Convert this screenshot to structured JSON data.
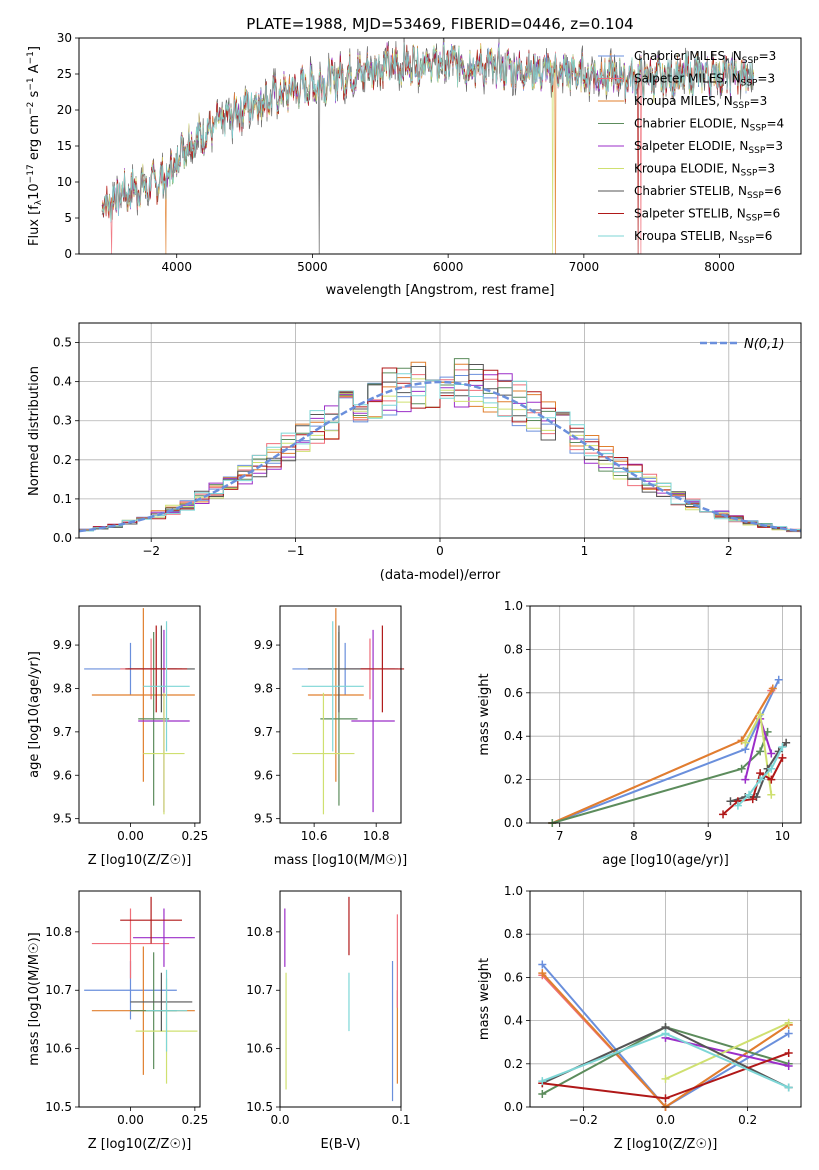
{
  "title": "PLATE=1988, MJD=53469, FIBERID=0446, z=0.104",
  "colors": {
    "chabrier_miles": "#6a8fdc",
    "salpeter_miles": "#ef6f7a",
    "kroupa_miles": "#e07f2e",
    "chabrier_elodie": "#5c8c5c",
    "salpeter_elodie": "#9b2ec8",
    "kroupa_elodie": "#cfe070",
    "chabrier_stelib": "#555555",
    "salpeter_stelib": "#b01818",
    "kroupa_stelib": "#7dd6d6",
    "normal": "#6a8fdc",
    "grid": "#b0b0b0"
  },
  "chart_data": [
    {
      "type": "line",
      "id": "spectrum",
      "xlabel": "wavelength [Angstrom, rest frame]",
      "ylabel_main": "Flux [f",
      "ylabel_sub": "λ",
      "ylabel_rest": "10",
      "ylabel_exp": "−17",
      "ylabel_units": " erg cm",
      "xlim": [
        3280,
        8600
      ],
      "ylim": [
        0,
        30
      ],
      "xticks": [
        "4000",
        "5000",
        "6000",
        "7000",
        "8000"
      ],
      "yticks": [
        "0",
        "5",
        "10",
        "15",
        "20",
        "25",
        "30"
      ],
      "grid": false,
      "legend_position": "right",
      "series": [
        {
          "name": "Chabrier MILES",
          "nssp": "3",
          "color_key": "chabrier_miles"
        },
        {
          "name": "Salpeter MILES",
          "nssp": "3",
          "color_key": "salpeter_miles"
        },
        {
          "name": "Kroupa MILES",
          "nssp": "3",
          "color_key": "kroupa_miles"
        },
        {
          "name": "Chabrier ELODIE",
          "nssp": "4",
          "color_key": "chabrier_elodie"
        },
        {
          "name": "Salpeter ELODIE",
          "nssp": "3",
          "color_key": "salpeter_elodie"
        },
        {
          "name": "Kroupa ELODIE",
          "nssp": "3",
          "color_key": "kroupa_elodie"
        },
        {
          "name": "Chabrier STELIB",
          "nssp": "6",
          "color_key": "chabrier_stelib"
        },
        {
          "name": "Salpeter STELIB",
          "nssp": "6",
          "color_key": "salpeter_stelib"
        },
        {
          "name": "Kroupa STELIB",
          "nssp": "6",
          "color_key": "kroupa_stelib"
        }
      ],
      "continuum": [
        [
          3450,
          6.5
        ],
        [
          3600,
          8.5
        ],
        [
          3800,
          9.5
        ],
        [
          3950,
          11
        ],
        [
          4050,
          15
        ],
        [
          4300,
          18
        ],
        [
          4500,
          20.5
        ],
        [
          4800,
          22.5
        ],
        [
          5000,
          23.5
        ],
        [
          5200,
          24.5
        ],
        [
          5500,
          26
        ],
        [
          5800,
          26.5
        ],
        [
          6000,
          26.5
        ],
        [
          6300,
          26
        ],
        [
          6600,
          25.5
        ],
        [
          7000,
          25
        ],
        [
          7300,
          24.5
        ],
        [
          7600,
          24.5
        ],
        [
          7800,
          25
        ],
        [
          8000,
          25
        ],
        [
          8250,
          24.5
        ]
      ]
    },
    {
      "type": "histogram",
      "id": "residuals",
      "xlabel": "(data-model)/error",
      "ylabel": "Normed distribution",
      "xlim": [
        -2.5,
        2.5
      ],
      "ylim": [
        0,
        0.55
      ],
      "xticks": [
        "−2",
        "−1",
        "0",
        "1",
        "2"
      ],
      "yticks": [
        "0.0",
        "0.1",
        "0.2",
        "0.3",
        "0.4",
        "0.5"
      ],
      "grid": true,
      "legend_label": "N(0,1)",
      "legend_position": "top-right",
      "bin_width": 0.1,
      "normal": {
        "mean": 0,
        "sigma": 1
      }
    },
    {
      "type": "errorbar",
      "id": "age_vs_z",
      "xlabel": "Z [log10(Z/Z☉)]",
      "ylabel": "age [log10(age/yr)]",
      "xlim": [
        -0.2,
        0.27
      ],
      "ylim": [
        9.49,
        9.99
      ],
      "xticks": [
        "0.00",
        "0.25"
      ],
      "xtick_values": [
        0,
        0.25
      ],
      "yticks": [
        "9.5",
        "9.6",
        "9.7",
        "9.8",
        "9.9"
      ],
      "ytick_values": [
        9.5,
        9.6,
        9.7,
        9.8,
        9.9
      ],
      "points": [
        {
          "color_key": "chabrier_miles",
          "x": 0.0,
          "xerr": 0.18,
          "y": 9.845,
          "yerr": 0.06
        },
        {
          "color_key": "salpeter_miles",
          "x": 0.08,
          "xerr": 0.12,
          "y": 9.845,
          "yerr": 0.07
        },
        {
          "color_key": "kroupa_miles",
          "x": 0.05,
          "xerr": 0.2,
          "y": 9.785,
          "yerr": 0.2
        },
        {
          "color_key": "chabrier_elodie",
          "x": 0.09,
          "xerr": 0.06,
          "y": 9.73,
          "yerr": 0.2
        },
        {
          "color_key": "salpeter_elodie",
          "x": 0.13,
          "xerr": 0.1,
          "y": 9.725,
          "yerr": 0.21
        },
        {
          "color_key": "kroupa_elodie",
          "x": 0.13,
          "xerr": 0.08,
          "y": 9.65,
          "yerr": 0.14
        },
        {
          "color_key": "chabrier_stelib",
          "x": 0.12,
          "xerr": 0.13,
          "y": 9.845,
          "yerr": 0.1
        },
        {
          "color_key": "salpeter_stelib",
          "x": 0.1,
          "xerr": 0.12,
          "y": 9.845,
          "yerr": 0.1
        },
        {
          "color_key": "kroupa_stelib",
          "x": 0.14,
          "xerr": 0.09,
          "y": 9.805,
          "yerr": 0.15
        }
      ]
    },
    {
      "type": "errorbar",
      "id": "age_vs_mass",
      "xlabel": "mass [log10(M/M☉)]",
      "ylabel": "",
      "xlim": [
        10.49,
        10.88
      ],
      "ylim": [
        9.49,
        9.99
      ],
      "xticks": [
        "10.6",
        "10.8"
      ],
      "xtick_values": [
        10.6,
        10.8
      ],
      "yticks": [
        "9.5",
        "9.6",
        "9.7",
        "9.8",
        "9.9"
      ],
      "ytick_values": [
        9.5,
        9.6,
        9.7,
        9.8,
        9.9
      ],
      "points": [
        {
          "color_key": "chabrier_miles",
          "x": 10.7,
          "xerr": 0.17,
          "y": 9.845,
          "yerr": 0.06
        },
        {
          "color_key": "salpeter_miles",
          "x": 10.78,
          "xerr": 0.08,
          "y": 9.845,
          "yerr": 0.07
        },
        {
          "color_key": "kroupa_miles",
          "x": 10.67,
          "xerr": 0.09,
          "y": 9.785,
          "yerr": 0.2
        },
        {
          "color_key": "chabrier_elodie",
          "x": 10.68,
          "xerr": 0.06,
          "y": 9.73,
          "yerr": 0.2
        },
        {
          "color_key": "salpeter_elodie",
          "x": 10.79,
          "xerr": 0.07,
          "y": 9.725,
          "yerr": 0.21
        },
        {
          "color_key": "kroupa_elodie",
          "x": 10.63,
          "xerr": 0.1,
          "y": 9.65,
          "yerr": 0.14
        },
        {
          "color_key": "chabrier_stelib",
          "x": 10.68,
          "xerr": 0.1,
          "y": 9.845,
          "yerr": 0.1
        },
        {
          "color_key": "salpeter_stelib",
          "x": 10.82,
          "xerr": 0.07,
          "y": 9.845,
          "yerr": 0.1
        },
        {
          "color_key": "kroupa_stelib",
          "x": 10.66,
          "xerr": 0.1,
          "y": 9.805,
          "yerr": 0.15
        }
      ]
    },
    {
      "type": "line",
      "id": "weight_vs_age",
      "xlabel": "age [log10(age/yr)]",
      "ylabel": "mass weight",
      "xlim": [
        6.6,
        10.25
      ],
      "ylim": [
        0,
        1
      ],
      "xticks": [
        "7",
        "8",
        "9",
        "10"
      ],
      "xtick_values": [
        7,
        8,
        9,
        10
      ],
      "yticks": [
        "0.0",
        "0.2",
        "0.4",
        "0.6",
        "0.8",
        "1.0"
      ],
      "ytick_values": [
        0,
        0.2,
        0.4,
        0.6,
        0.8,
        1.0
      ],
      "grid": true,
      "series": [
        {
          "color_key": "chabrier_miles",
          "points": [
            [
              6.9,
              0
            ],
            [
              9.5,
              0.34
            ],
            [
              9.95,
              0.66
            ]
          ]
        },
        {
          "color_key": "salpeter_miles",
          "points": [
            [
              6.9,
              0
            ],
            [
              9.45,
              0.38
            ],
            [
              9.85,
              0.61
            ]
          ]
        },
        {
          "color_key": "kroupa_miles",
          "points": [
            [
              6.9,
              0
            ],
            [
              9.45,
              0.38
            ],
            [
              9.87,
              0.62
            ]
          ]
        },
        {
          "color_key": "chabrier_elodie",
          "points": [
            [
              6.9,
              0
            ],
            [
              9.45,
              0.25
            ],
            [
              9.7,
              0.33
            ],
            [
              9.8,
              0.42
            ]
          ]
        },
        {
          "color_key": "salpeter_elodie",
          "points": [
            [
              9.5,
              0.2
            ],
            [
              9.7,
              0.48
            ],
            [
              9.85,
              0.32
            ]
          ]
        },
        {
          "color_key": "kroupa_elodie",
          "points": [
            [
              9.5,
              0.37
            ],
            [
              9.7,
              0.5
            ],
            [
              9.85,
              0.13
            ]
          ]
        },
        {
          "color_key": "chabrier_stelib",
          "points": [
            [
              9.3,
              0.1
            ],
            [
              9.5,
              0.12
            ],
            [
              9.65,
              0.12
            ],
            [
              9.8,
              0.25
            ],
            [
              9.95,
              0.33
            ],
            [
              10.05,
              0.37
            ]
          ]
        },
        {
          "color_key": "salpeter_stelib",
          "points": [
            [
              9.2,
              0.04
            ],
            [
              9.4,
              0.1
            ],
            [
              9.6,
              0.11
            ],
            [
              9.7,
              0.23
            ],
            [
              9.85,
              0.2
            ],
            [
              10.0,
              0.3
            ]
          ]
        },
        {
          "color_key": "kroupa_stelib",
          "points": [
            [
              9.4,
              0.08
            ],
            [
              9.55,
              0.13
            ],
            [
              9.7,
              0.2
            ],
            [
              9.85,
              0.25
            ],
            [
              10.0,
              0.35
            ]
          ]
        }
      ]
    },
    {
      "type": "errorbar",
      "id": "mass_vs_z",
      "xlabel": "Z [log10(Z/Z☉)]",
      "ylabel": "mass [log10(M/M☉)]",
      "xlim": [
        -0.2,
        0.27
      ],
      "ylim": [
        10.5,
        10.87
      ],
      "xticks": [
        "0.00",
        "0.25"
      ],
      "xtick_values": [
        0,
        0.25
      ],
      "yticks": [
        "10.5",
        "10.6",
        "10.7",
        "10.8"
      ],
      "ytick_values": [
        10.5,
        10.6,
        10.7,
        10.8
      ],
      "points": [
        {
          "color_key": "chabrier_miles",
          "x": 0.0,
          "xerr": 0.18,
          "y": 10.7,
          "yerr": 0.05
        },
        {
          "color_key": "salpeter_miles",
          "x": 0.0,
          "xerr": 0.15,
          "y": 10.78,
          "yerr": 0.06
        },
        {
          "color_key": "kroupa_miles",
          "x": 0.05,
          "xerr": 0.2,
          "y": 10.665,
          "yerr": 0.11
        },
        {
          "color_key": "chabrier_elodie",
          "x": 0.09,
          "xerr": 0.09,
          "y": 10.665,
          "yerr": 0.1
        },
        {
          "color_key": "salpeter_elodie",
          "x": 0.13,
          "xerr": 0.12,
          "y": 10.79,
          "yerr": 0.05
        },
        {
          "color_key": "kroupa_elodie",
          "x": 0.14,
          "xerr": 0.12,
          "y": 10.63,
          "yerr": 0.09
        },
        {
          "color_key": "chabrier_stelib",
          "x": 0.12,
          "xerr": 0.12,
          "y": 10.68,
          "yerr": 0.05
        },
        {
          "color_key": "salpeter_stelib",
          "x": 0.08,
          "xerr": 0.12,
          "y": 10.82,
          "yerr": 0.04
        },
        {
          "color_key": "kroupa_stelib",
          "x": 0.14,
          "xerr": 0.08,
          "y": 10.665,
          "yerr": 0.07
        }
      ]
    },
    {
      "type": "errorbar",
      "id": "mass_vs_ebv",
      "xlabel": "E(B-V)",
      "ylabel": "",
      "xlim": [
        0,
        0.1
      ],
      "ylim": [
        10.5,
        10.87
      ],
      "xticks": [
        "0.0",
        "0.1"
      ],
      "xtick_values": [
        0,
        0.1
      ],
      "yticks": [
        "10.5",
        "10.6",
        "10.7",
        "10.8"
      ],
      "ytick_values": [
        10.5,
        10.6,
        10.7,
        10.8
      ],
      "points": [
        {
          "color_key": "salpeter_elodie",
          "x": 0.004,
          "xerr": 0,
          "y": 10.79,
          "yerr": 0.05
        },
        {
          "color_key": "kroupa_elodie",
          "x": 0.005,
          "xerr": 0,
          "y": 10.63,
          "yerr": 0.1
        },
        {
          "color_key": "salpeter_stelib",
          "x": 0.057,
          "xerr": 0,
          "y": 10.81,
          "yerr": 0.05
        },
        {
          "color_key": "kroupa_stelib",
          "x": 0.057,
          "xerr": 0,
          "y": 10.68,
          "yerr": 0.05
        },
        {
          "color_key": "chabrier_miles",
          "x": 0.093,
          "xerr": 0,
          "y": 10.63,
          "yerr": 0.12
        },
        {
          "color_key": "kroupa_miles",
          "x": 0.097,
          "xerr": 0,
          "y": 10.62,
          "yerr": 0.08
        },
        {
          "color_key": "salpeter_miles",
          "x": 0.097,
          "xerr": 0,
          "y": 10.75,
          "yerr": 0.08
        }
      ]
    },
    {
      "type": "line",
      "id": "weight_vs_z",
      "xlabel": "Z [log10(Z/Z☉)]",
      "ylabel": "mass weight",
      "xlim": [
        -0.33,
        0.33
      ],
      "ylim": [
        0,
        1
      ],
      "xticks": [
        "−0.2",
        "0.0",
        "0.2"
      ],
      "xtick_values": [
        -0.2,
        0,
        0.2
      ],
      "yticks": [
        "0.0",
        "0.2",
        "0.4",
        "0.6",
        "0.8",
        "1.0"
      ],
      "ytick_values": [
        0,
        0.2,
        0.4,
        0.6,
        0.8,
        1.0
      ],
      "grid": true,
      "series": [
        {
          "color_key": "chabrier_miles",
          "points": [
            [
              -0.3,
              0.66
            ],
            [
              0,
              0
            ],
            [
              0.3,
              0.34
            ]
          ]
        },
        {
          "color_key": "salpeter_miles",
          "points": [
            [
              -0.3,
              0.61
            ],
            [
              0,
              0
            ],
            [
              0.3,
              0.38
            ]
          ]
        },
        {
          "color_key": "kroupa_miles",
          "points": [
            [
              -0.3,
              0.62
            ],
            [
              0,
              0
            ],
            [
              0.3,
              0.38
            ]
          ]
        },
        {
          "color_key": "chabrier_elodie",
          "points": [
            [
              -0.3,
              0.06
            ],
            [
              0,
              0.37
            ],
            [
              0.3,
              0.2
            ]
          ]
        },
        {
          "color_key": "salpeter_elodie",
          "points": [
            [
              0,
              0.32
            ],
            [
              0.3,
              0.19
            ]
          ]
        },
        {
          "color_key": "kroupa_elodie",
          "points": [
            [
              0,
              0.13
            ],
            [
              0.3,
              0.39
            ]
          ]
        },
        {
          "color_key": "chabrier_stelib",
          "points": [
            [
              -0.3,
              0.11
            ],
            [
              0,
              0.37
            ],
            [
              0.3,
              0.09
            ]
          ]
        },
        {
          "color_key": "salpeter_stelib",
          "points": [
            [
              -0.3,
              0.11
            ],
            [
              0,
              0.04
            ],
            [
              0.3,
              0.25
            ]
          ]
        },
        {
          "color_key": "kroupa_stelib",
          "points": [
            [
              -0.3,
              0.12
            ],
            [
              0,
              0.34
            ],
            [
              0.3,
              0.09
            ]
          ]
        }
      ]
    }
  ]
}
